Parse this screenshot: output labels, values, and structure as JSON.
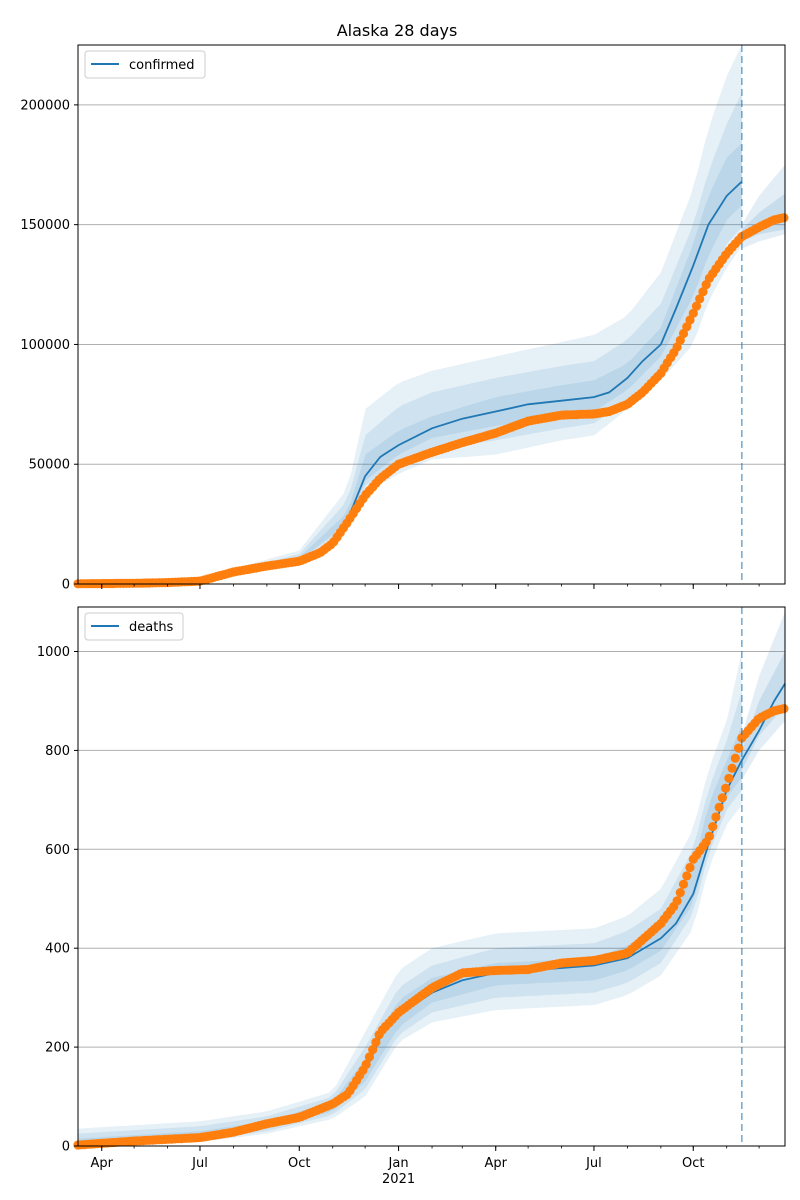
{
  "colors": {
    "model": "#1f77b4",
    "observed": "#ff7f0e",
    "band": "#1f77b4",
    "forecast_line": "#1f77b4",
    "grid": "#b0b0b0"
  },
  "chart_data": [
    {
      "type": "line",
      "title": "Alaska 28 days",
      "xlabel": "",
      "ylabel": "",
      "x_ticks": [
        "Apr",
        "Jul",
        "Oct",
        "Jan",
        "Apr",
        "Jul",
        "Oct"
      ],
      "x_year_label": "2021",
      "xlim": [
        "2020-03-10",
        "2021-12-25"
      ],
      "ylim": [
        0,
        225000
      ],
      "y_ticks": [
        "0",
        "50000",
        "100000",
        "150000",
        "200000"
      ],
      "grid": "y",
      "legend": {
        "placement": "top-left",
        "entries": [
          "confirmed"
        ]
      },
      "forecast_date": "2021-11-15",
      "series": [
        {
          "name": "confirmed",
          "style": "line",
          "x": [
            "2020-03-10",
            "2020-05-01",
            "2020-06-01",
            "2020-07-01",
            "2020-08-01",
            "2020-09-01",
            "2020-10-01",
            "2020-10-20",
            "2020-11-01",
            "2020-11-15",
            "2020-12-01",
            "2020-12-15",
            "2021-01-01",
            "2021-02-01",
            "2021-03-01",
            "2021-04-01",
            "2021-05-01",
            "2021-06-01",
            "2021-07-01",
            "2021-07-15",
            "2021-08-01",
            "2021-08-15",
            "2021-09-01",
            "2021-09-15",
            "2021-10-01",
            "2021-10-15",
            "2021-11-01",
            "2021-11-15"
          ],
          "values": [
            100,
            300,
            700,
            1500,
            5000,
            7500,
            10000,
            13000,
            18000,
            27000,
            45000,
            53000,
            58000,
            65000,
            69000,
            72000,
            75000,
            76500,
            78000,
            80000,
            86000,
            93000,
            100000,
            115000,
            133000,
            150000,
            162000,
            168000
          ]
        },
        {
          "name": "",
          "style": "points",
          "x": [
            "2020-03-10",
            "2020-05-01",
            "2020-06-01",
            "2020-07-01",
            "2020-08-01",
            "2020-09-01",
            "2020-10-01",
            "2020-10-20",
            "2020-11-01",
            "2020-11-15",
            "2020-12-01",
            "2020-12-15",
            "2021-01-01",
            "2021-02-01",
            "2021-03-01",
            "2021-04-01",
            "2021-05-01",
            "2021-06-01",
            "2021-07-01",
            "2021-07-15",
            "2021-08-01",
            "2021-08-15",
            "2021-09-01",
            "2021-09-15",
            "2021-10-01",
            "2021-10-15",
            "2021-11-01",
            "2021-11-15",
            "2021-12-01",
            "2021-12-15",
            "2021-12-25"
          ],
          "values": [
            100,
            300,
            600,
            1200,
            5000,
            7500,
            9500,
            13000,
            17000,
            26000,
            37000,
            44000,
            50000,
            55000,
            59000,
            63000,
            68000,
            70500,
            71000,
            72000,
            75000,
            80000,
            88000,
            98000,
            113000,
            127000,
            138000,
            145000,
            149000,
            152000,
            153000
          ]
        }
      ],
      "bands": [
        {
          "x": [
            "2020-03-10",
            "2020-07-01",
            "2020-10-01",
            "2020-11-15",
            "2020-12-01",
            "2021-01-01",
            "2021-02-01",
            "2021-04-01",
            "2021-06-01",
            "2021-07-01",
            "2021-08-01",
            "2021-09-01",
            "2021-10-01",
            "2021-10-15",
            "2021-11-01",
            "2021-11-15"
          ],
          "lower": [
            0,
            1000,
            9000,
            22000,
            38000,
            46000,
            52000,
            54000,
            60000,
            62000,
            73000,
            85000,
            100000,
            118000,
            132000,
            141000
          ],
          "upper": [
            400,
            2500,
            14000,
            40000,
            73000,
            84000,
            89000,
            95000,
            101000,
            104000,
            112000,
            130000,
            165000,
            190000,
            212000,
            225000
          ]
        },
        {
          "x": [
            "2020-03-10",
            "2020-07-01",
            "2020-10-01",
            "2020-11-15",
            "2020-12-01",
            "2021-01-01",
            "2021-02-01",
            "2021-04-01",
            "2021-06-01",
            "2021-07-01",
            "2021-08-01",
            "2021-09-01",
            "2021-10-01",
            "2021-10-15",
            "2021-11-01",
            "2021-11-15"
          ],
          "lower": [
            30,
            1200,
            9500,
            24000,
            41000,
            50000,
            56000,
            60000,
            65000,
            67000,
            77000,
            90000,
            110000,
            128000,
            142000,
            149000
          ],
          "upper": [
            300,
            2000,
            12500,
            35000,
            62000,
            74000,
            80000,
            86000,
            91000,
            93000,
            102000,
            117000,
            150000,
            172000,
            192000,
            205000
          ]
        },
        {
          "x": [
            "2020-03-10",
            "2020-07-01",
            "2020-10-01",
            "2020-11-15",
            "2020-12-01",
            "2021-01-01",
            "2021-02-01",
            "2021-04-01",
            "2021-06-01",
            "2021-07-01",
            "2021-08-01",
            "2021-09-01",
            "2021-10-01",
            "2021-10-15",
            "2021-11-01",
            "2021-11-15"
          ],
          "lower": [
            60,
            1350,
            9800,
            25500,
            43000,
            54000,
            61000,
            66000,
            70000,
            72000,
            81000,
            95000,
            120000,
            137000,
            152000,
            158000
          ],
          "upper": [
            200,
            1700,
            11200,
            30000,
            54000,
            64000,
            70000,
            78000,
            83000,
            85000,
            92000,
            107000,
            142000,
            162000,
            178000,
            184000
          ]
        }
      ],
      "extension_bands": [
        {
          "x": [
            "2021-11-15",
            "2021-12-01",
            "2021-12-25"
          ],
          "lower": [
            140000,
            143000,
            146000
          ],
          "upper": [
            150000,
            162000,
            175000
          ]
        },
        {
          "x": [
            "2021-11-15",
            "2021-12-01",
            "2021-12-25"
          ],
          "lower": [
            143000,
            146000,
            148000
          ],
          "upper": [
            148000,
            155000,
            163000
          ]
        }
      ]
    },
    {
      "type": "line",
      "title": "",
      "xlabel": "",
      "ylabel": "",
      "x_ticks": [
        "Apr",
        "Jul",
        "Oct",
        "Jan",
        "Apr",
        "Jul",
        "Oct"
      ],
      "x_year_label": "2021",
      "xlim": [
        "2020-03-10",
        "2021-12-25"
      ],
      "ylim": [
        0,
        1090
      ],
      "y_ticks": [
        "0",
        "200",
        "400",
        "600",
        "800",
        "1000"
      ],
      "grid": "y",
      "legend": {
        "placement": "top-left",
        "entries": [
          "deaths"
        ]
      },
      "forecast_date": "2021-11-15",
      "series": [
        {
          "name": "deaths",
          "style": "line",
          "x": [
            "2020-03-10",
            "2020-05-01",
            "2020-07-01",
            "2020-08-01",
            "2020-09-01",
            "2020-10-01",
            "2020-11-01",
            "2020-11-15",
            "2020-12-01",
            "2020-12-15",
            "2021-01-01",
            "2021-02-01",
            "2021-03-01",
            "2021-04-01",
            "2021-05-01",
            "2021-06-01",
            "2021-07-01",
            "2021-08-01",
            "2021-09-01",
            "2021-09-15",
            "2021-10-01",
            "2021-10-15",
            "2021-11-01",
            "2021-11-15",
            "2021-12-01",
            "2021-12-15",
            "2021-12-25"
          ],
          "values": [
            5,
            10,
            17,
            25,
            40,
            55,
            80,
            105,
            150,
            220,
            265,
            310,
            335,
            350,
            355,
            360,
            365,
            380,
            420,
            450,
            510,
            610,
            720,
            780,
            840,
            900,
            935
          ]
        },
        {
          "name": "",
          "style": "points",
          "x": [
            "2020-03-10",
            "2020-05-01",
            "2020-07-01",
            "2020-08-01",
            "2020-09-01",
            "2020-10-01",
            "2020-11-01",
            "2020-11-15",
            "2020-12-01",
            "2020-12-15",
            "2021-01-01",
            "2021-02-01",
            "2021-03-01",
            "2021-04-01",
            "2021-05-01",
            "2021-06-01",
            "2021-07-01",
            "2021-08-01",
            "2021-09-01",
            "2021-09-15",
            "2021-10-01",
            "2021-10-15",
            "2021-11-01",
            "2021-11-15",
            "2021-12-01",
            "2021-12-15",
            "2021-12-25"
          ],
          "values": [
            2,
            10,
            17,
            28,
            45,
            58,
            85,
            105,
            160,
            230,
            270,
            320,
            350,
            355,
            357,
            370,
            375,
            390,
            450,
            490,
            580,
            620,
            730,
            825,
            865,
            880,
            885
          ]
        }
      ],
      "bands": [
        {
          "x": [
            "2020-03-10",
            "2020-07-01",
            "2020-09-01",
            "2020-11-01",
            "2020-12-01",
            "2021-01-01",
            "2021-02-01",
            "2021-04-01",
            "2021-07-01",
            "2021-08-01",
            "2021-09-01",
            "2021-10-01",
            "2021-10-15",
            "2021-11-01",
            "2021-11-15"
          ],
          "lower": [
            0,
            8,
            25,
            55,
            100,
            210,
            250,
            275,
            285,
            305,
            345,
            440,
            560,
            650,
            690
          ],
          "upper": [
            35,
            50,
            70,
            110,
            230,
            355,
            400,
            430,
            440,
            465,
            520,
            640,
            760,
            860,
            1000
          ]
        },
        {
          "x": [
            "2020-03-10",
            "2020-07-01",
            "2020-09-01",
            "2020-11-01",
            "2020-12-01",
            "2021-01-01",
            "2021-02-01",
            "2021-04-01",
            "2021-07-01",
            "2021-08-01",
            "2021-09-01",
            "2021-10-01",
            "2021-10-15",
            "2021-11-01",
            "2021-11-15"
          ],
          "lower": [
            0,
            10,
            30,
            63,
            115,
            225,
            270,
            300,
            310,
            330,
            370,
            470,
            590,
            680,
            720
          ],
          "upper": [
            25,
            40,
            60,
            100,
            200,
            320,
            365,
            400,
            410,
            435,
            480,
            600,
            720,
            820,
            920
          ]
        },
        {
          "x": [
            "2020-03-10",
            "2020-07-01",
            "2020-09-01",
            "2020-11-01",
            "2020-12-01",
            "2021-01-01",
            "2021-02-01",
            "2021-04-01",
            "2021-07-01",
            "2021-08-01",
            "2021-09-01",
            "2021-10-01",
            "2021-10-15",
            "2021-11-01",
            "2021-11-15"
          ],
          "lower": [
            2,
            13,
            35,
            70,
            130,
            240,
            290,
            325,
            335,
            355,
            395,
            490,
            610,
            705,
            745
          ],
          "upper": [
            15,
            30,
            50,
            90,
            175,
            295,
            340,
            370,
            380,
            405,
            450,
            560,
            690,
            780,
            850
          ]
        }
      ],
      "extension_bands": [
        {
          "x": [
            "2021-11-15",
            "2021-12-01",
            "2021-12-25"
          ],
          "lower": [
            740,
            800,
            860
          ],
          "upper": [
            830,
            950,
            1080
          ]
        },
        {
          "x": [
            "2021-11-15",
            "2021-12-01",
            "2021-12-25"
          ],
          "lower": [
            760,
            830,
            890
          ],
          "upper": [
            800,
            900,
            1000
          ]
        }
      ]
    }
  ]
}
